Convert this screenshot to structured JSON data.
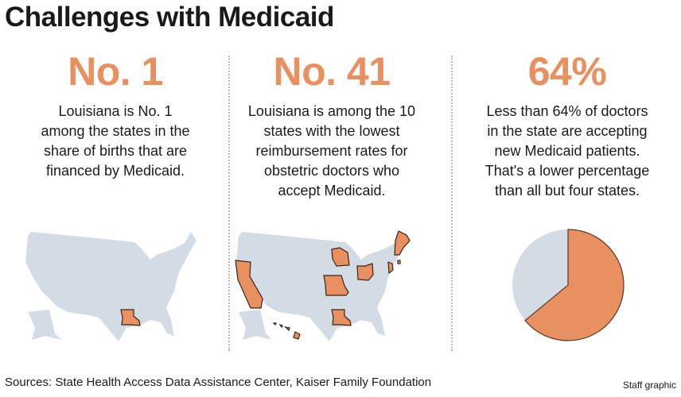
{
  "title": "Challenges with Medicaid",
  "colors": {
    "accent": "#e8905f",
    "map_base": "#d3dce4",
    "outline": "#5a3a2a"
  },
  "columns": [
    {
      "headline": "No. 1",
      "lines": [
        "Louisiana is No. 1",
        "among the states in the",
        "share of births that are",
        "financed by Medicaid."
      ],
      "highlighted_states": [
        "Louisiana"
      ]
    },
    {
      "headline": "No. 41",
      "lines": [
        "Louisiana is among the 10",
        "states with the lowest",
        "reimbursement rates for",
        "obstetric doctors who",
        "accept Medicaid."
      ],
      "highlighted_states": [
        "California",
        "Wisconsin",
        "Missouri",
        "Ohio",
        "Louisiana",
        "New Jersey",
        "Maine",
        "New Hampshire",
        "Vermont",
        "Rhode Island",
        "Hawaii"
      ]
    },
    {
      "headline": "64%",
      "lines": [
        "Less than 64% of doctors",
        "in the state are accepting",
        "new Medicaid patients.",
        "That's a lower percentage",
        "than all but four states."
      ]
    }
  ],
  "chart_data": {
    "type": "pie",
    "values": [
      64,
      36
    ],
    "colors": [
      "#e8905f",
      "#d3dce4"
    ]
  },
  "sources": "Sources: State Health Access Data Assistance Center, Kaiser Family Foundation",
  "credit": "Staff graphic"
}
